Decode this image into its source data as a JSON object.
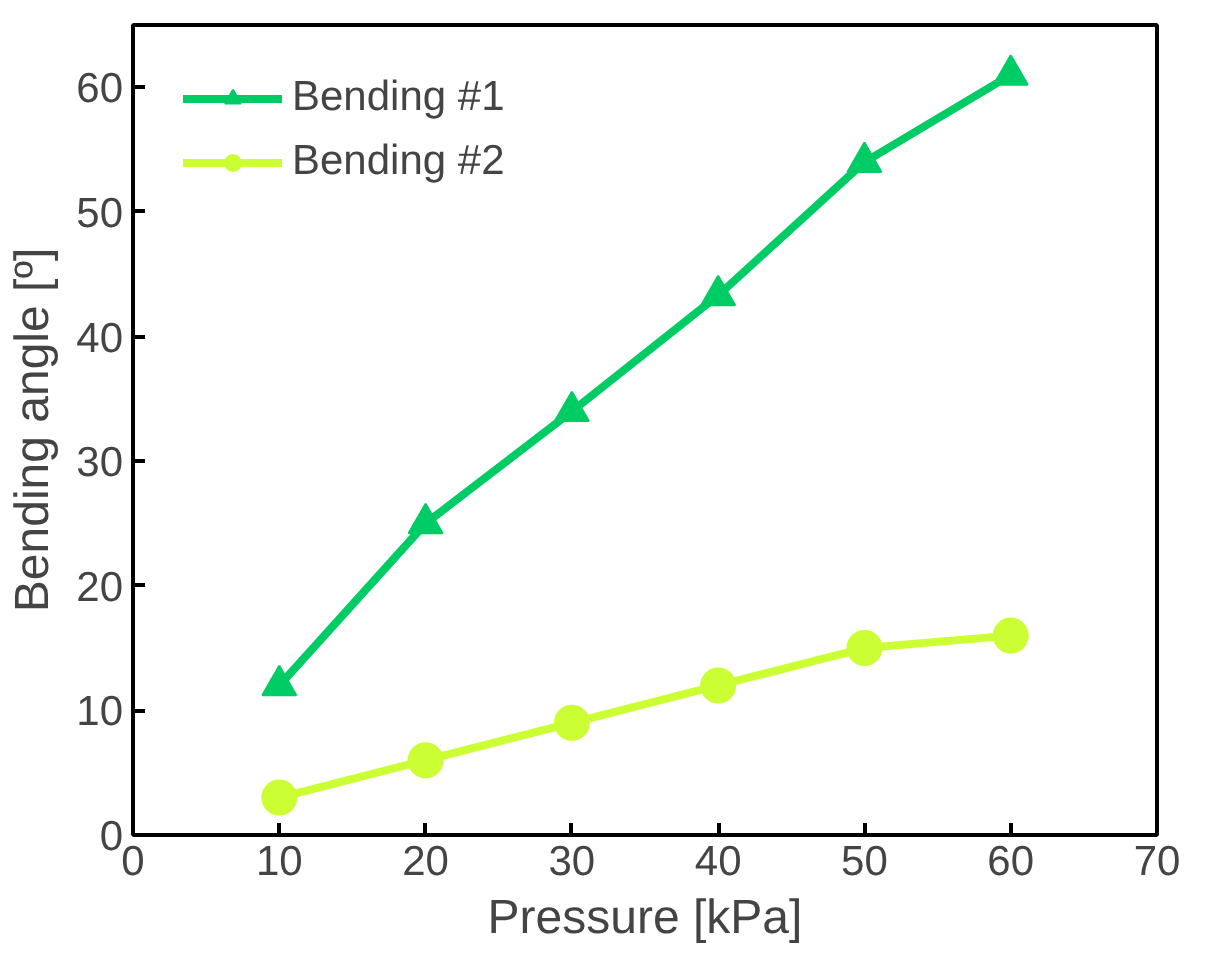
{
  "chart_data": {
    "type": "line",
    "xlabel": "Pressure [kPa]",
    "ylabel": "Bending angle [º]",
    "x": [
      10,
      20,
      30,
      40,
      50,
      60
    ],
    "series": [
      {
        "name": "Bending #1",
        "color": "#00cc66",
        "marker": "triangle",
        "values": [
          12,
          25,
          34,
          43.3,
          54,
          61
        ]
      },
      {
        "name": "Bending #2",
        "color": "#ccff33",
        "marker": "circle",
        "values": [
          3,
          6,
          9,
          12,
          15,
          16
        ]
      }
    ],
    "xlim": [
      0,
      70
    ],
    "ylim": [
      0,
      65
    ],
    "xticks": [
      0,
      10,
      20,
      30,
      40,
      50,
      60,
      70
    ],
    "yticks": [
      0,
      10,
      20,
      30,
      40,
      50,
      60
    ],
    "grid": false,
    "legend": "top left"
  }
}
